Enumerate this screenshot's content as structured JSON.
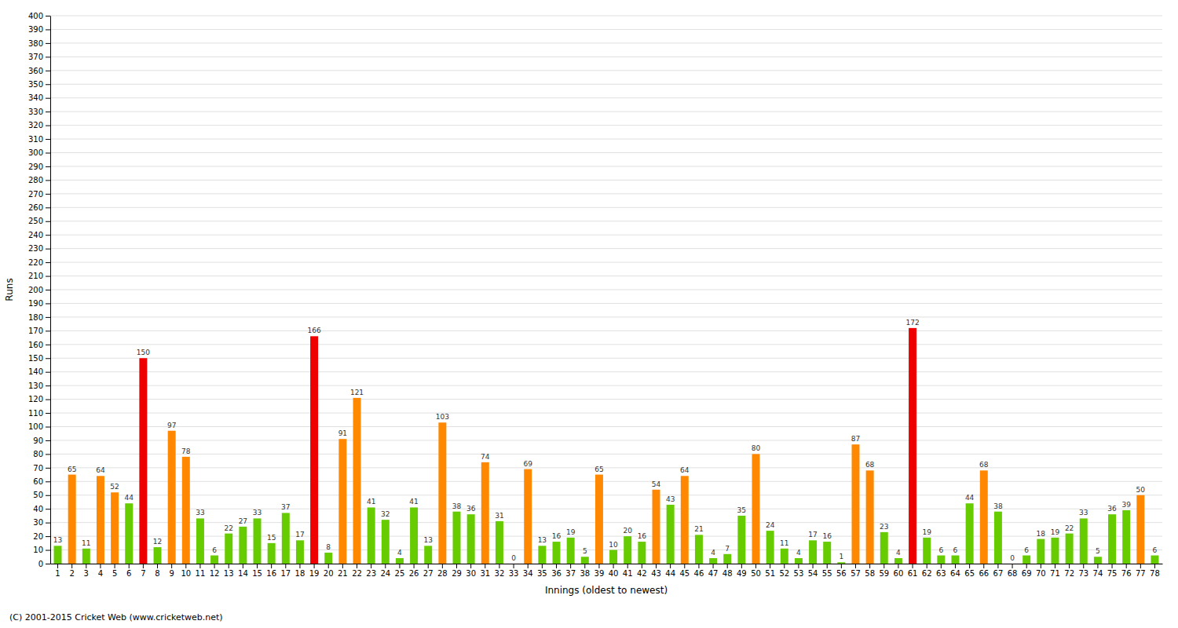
{
  "chart_data": {
    "type": "bar",
    "xlabel": "Innings (oldest to newest)",
    "ylabel": "Runs",
    "annotations": [
      "(C) 2001-2015 Cricket Web (www.cricketweb.net)"
    ],
    "categories": [
      1,
      2,
      3,
      4,
      5,
      6,
      7,
      8,
      9,
      10,
      11,
      12,
      13,
      14,
      15,
      16,
      17,
      18,
      19,
      20,
      21,
      22,
      23,
      24,
      25,
      26,
      27,
      28,
      29,
      30,
      31,
      32,
      33,
      34,
      35,
      36,
      37,
      38,
      39,
      40,
      41,
      42,
      43,
      44,
      45,
      46,
      47,
      48,
      49,
      50,
      51,
      52,
      53,
      54,
      55,
      56,
      57,
      58,
      59,
      60,
      61,
      62,
      63,
      64,
      65,
      66,
      67,
      68,
      69,
      70,
      71,
      72,
      73,
      74,
      75,
      76,
      77,
      78
    ],
    "values": [
      13,
      65,
      11,
      64,
      52,
      44,
      150,
      12,
      97,
      78,
      33,
      6,
      22,
      27,
      33,
      15,
      37,
      17,
      166,
      8,
      91,
      121,
      41,
      32,
      4,
      41,
      13,
      103,
      38,
      36,
      74,
      31,
      0,
      69,
      13,
      16,
      19,
      5,
      65,
      10,
      20,
      16,
      54,
      43,
      64,
      21,
      4,
      7,
      35,
      80,
      24,
      11,
      4,
      17,
      16,
      1,
      87,
      68,
      23,
      4,
      172,
      19,
      6,
      6,
      44,
      68,
      38,
      0,
      6,
      18,
      19,
      22,
      33,
      5,
      36,
      39,
      50,
      6
    ],
    "colors": [
      "#66cc00",
      "#ff8800",
      "#66cc00",
      "#ff8800",
      "#ff8800",
      "#66cc00",
      "#ee0000",
      "#66cc00",
      "#ff8800",
      "#ff8800",
      "#66cc00",
      "#66cc00",
      "#66cc00",
      "#66cc00",
      "#66cc00",
      "#66cc00",
      "#66cc00",
      "#66cc00",
      "#ee0000",
      "#66cc00",
      "#ff8800",
      "#ff8800",
      "#66cc00",
      "#66cc00",
      "#66cc00",
      "#66cc00",
      "#66cc00",
      "#ff8800",
      "#66cc00",
      "#66cc00",
      "#ff8800",
      "#66cc00",
      "#66cc00",
      "#ff8800",
      "#66cc00",
      "#66cc00",
      "#66cc00",
      "#66cc00",
      "#ff8800",
      "#66cc00",
      "#66cc00",
      "#66cc00",
      "#ff8800",
      "#66cc00",
      "#ff8800",
      "#66cc00",
      "#66cc00",
      "#66cc00",
      "#66cc00",
      "#ff8800",
      "#66cc00",
      "#66cc00",
      "#66cc00",
      "#66cc00",
      "#66cc00",
      "#66cc00",
      "#ff8800",
      "#ff8800",
      "#66cc00",
      "#66cc00",
      "#ee0000",
      "#66cc00",
      "#66cc00",
      "#66cc00",
      "#66cc00",
      "#ff8800",
      "#66cc00",
      "#66cc00",
      "#66cc00",
      "#66cc00",
      "#66cc00",
      "#66cc00",
      "#66cc00",
      "#66cc00",
      "#66cc00",
      "#66cc00",
      "#ff8800",
      "#66cc00"
    ],
    "ylim": [
      0,
      400
    ],
    "yticks": [
      0,
      10,
      20,
      30,
      40,
      50,
      60,
      70,
      80,
      90,
      100,
      110,
      120,
      130,
      140,
      150,
      160,
      170,
      180,
      190,
      200,
      210,
      220,
      230,
      240,
      250,
      260,
      270,
      280,
      290,
      300,
      310,
      320,
      330,
      340,
      350,
      360,
      370,
      380,
      390,
      400
    ],
    "grid": true,
    "data_labels": true
  }
}
